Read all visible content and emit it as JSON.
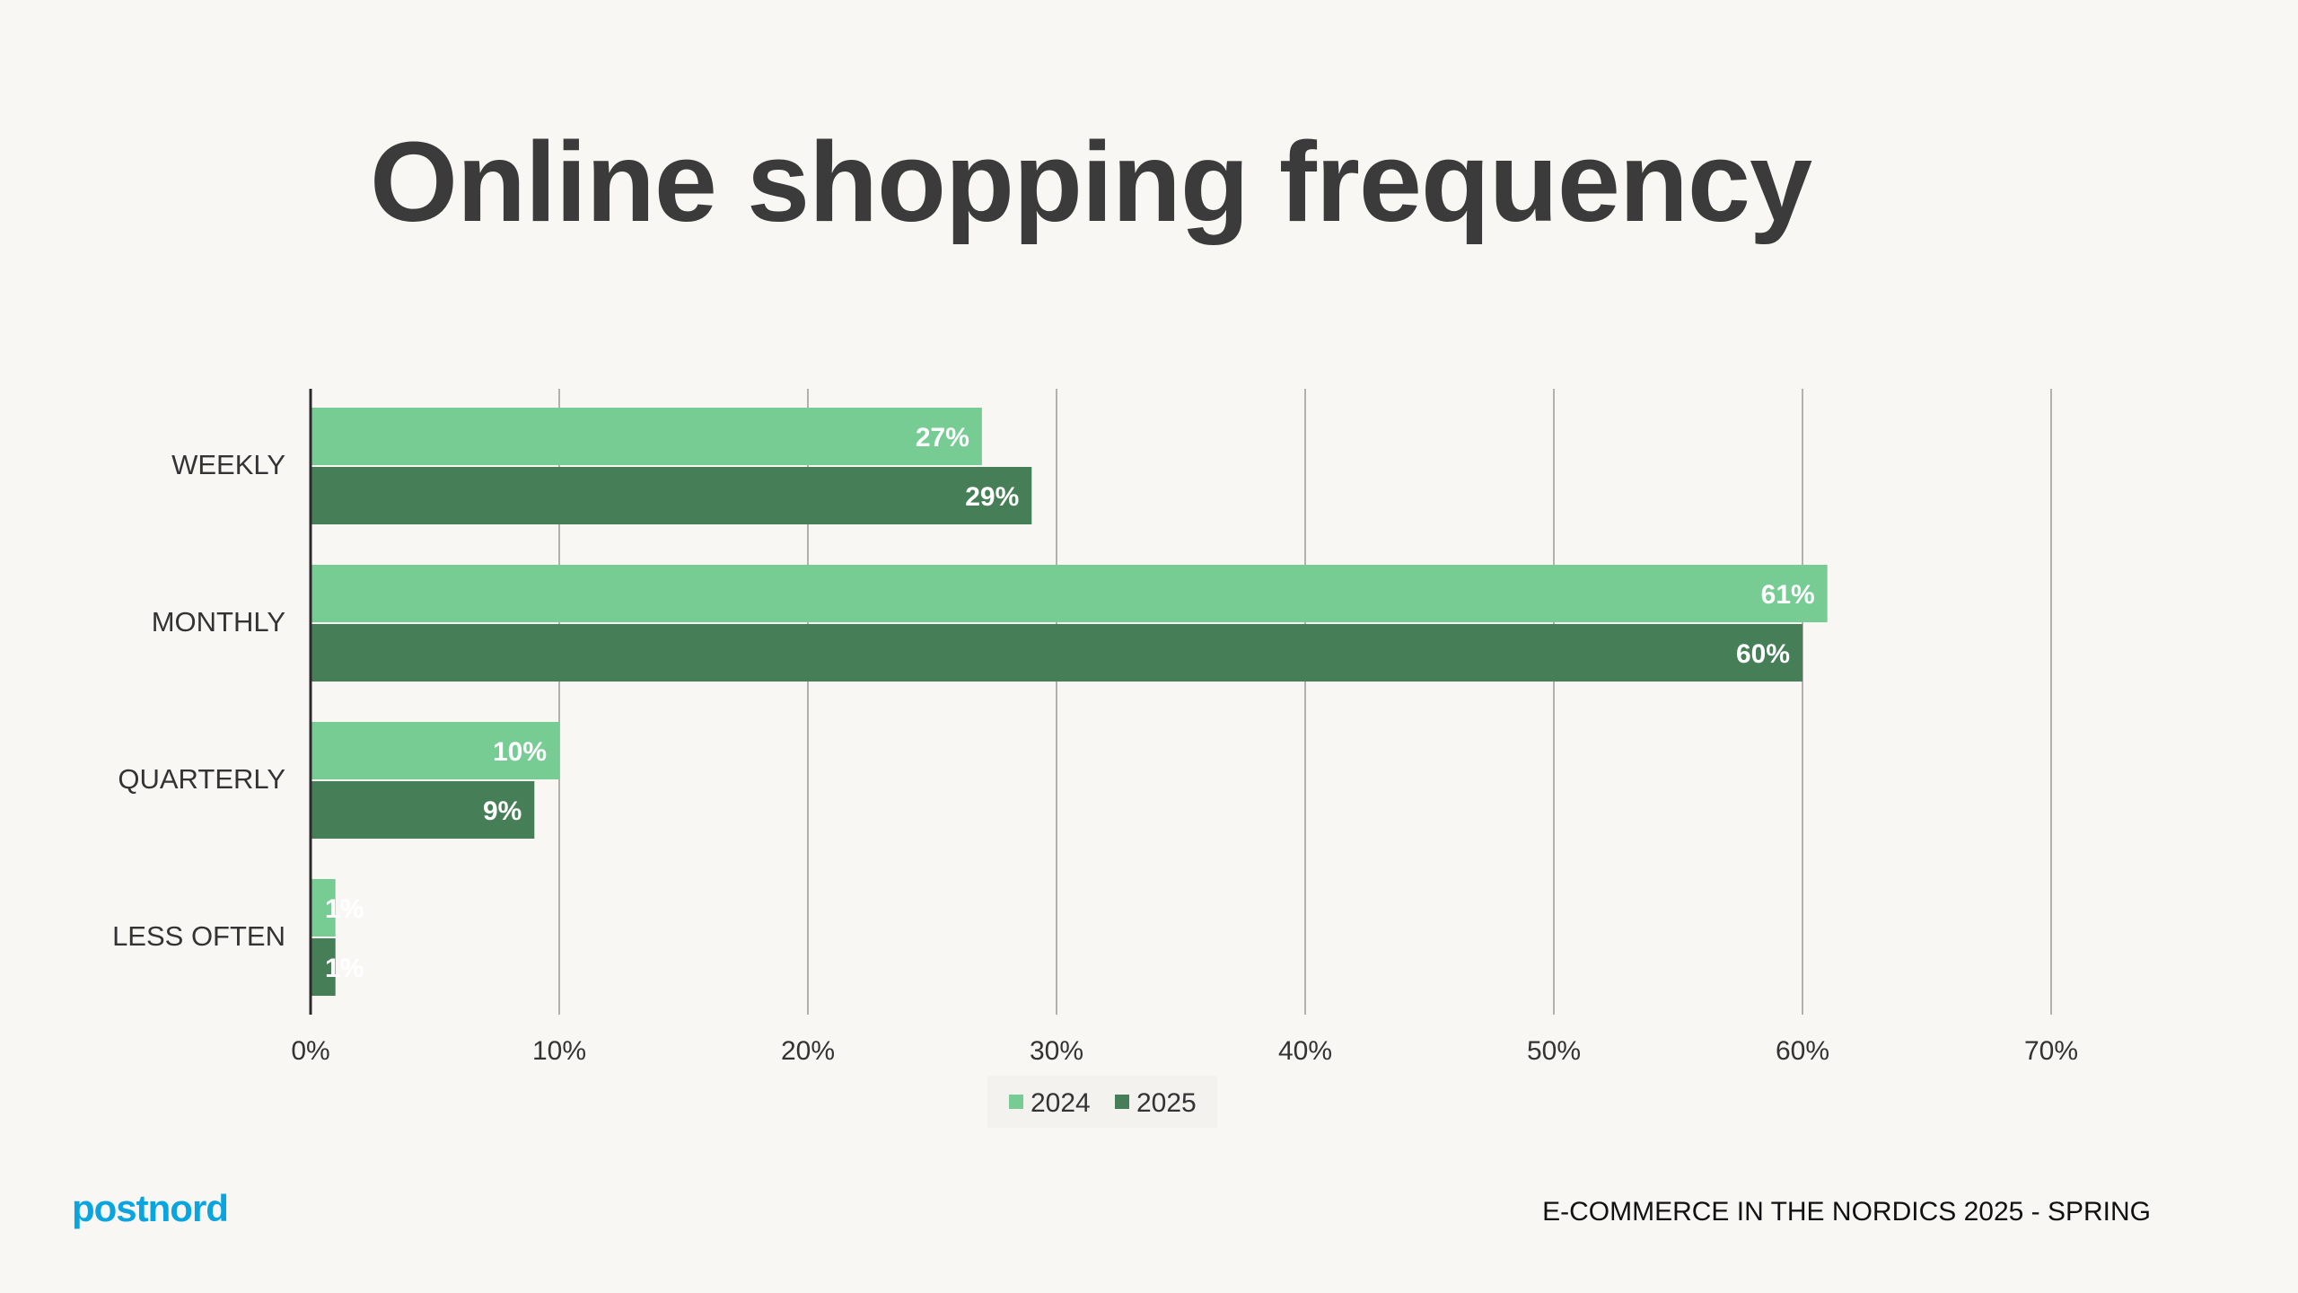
{
  "header": {
    "title": "Online shopping frequency"
  },
  "footer": {
    "logo_text": "postnord",
    "report": "E-COMMERCE IN THE NORDICS 2025 - SPRING"
  },
  "colors": {
    "series_2024": "#77cc94",
    "series_2025": "#467f57",
    "grid": "#9a9a9a",
    "axis": "#2b2b2b",
    "label": "#333333",
    "logo": "#0aa5df"
  },
  "chart_data": {
    "type": "bar",
    "orientation": "horizontal",
    "title": "Online shopping frequency",
    "categories": [
      "WEEKLY",
      "MONTHLY",
      "QUARTERLY",
      "LESS OFTEN"
    ],
    "series": [
      {
        "name": "2024",
        "values": [
          27,
          61,
          10,
          1
        ],
        "labels": [
          "27%",
          "61%",
          "10%",
          "1%"
        ]
      },
      {
        "name": "2025",
        "values": [
          29,
          60,
          9,
          1
        ],
        "labels": [
          "29%",
          "60%",
          "9%",
          "1%"
        ]
      }
    ],
    "xlim": [
      0,
      70
    ],
    "x_ticks": [
      0,
      10,
      20,
      30,
      40,
      50,
      60,
      70
    ],
    "x_tick_labels": [
      "0%",
      "10%",
      "20%",
      "30%",
      "40%",
      "50%",
      "60%",
      "70%"
    ],
    "grid": true,
    "legend_position": "bottom"
  }
}
